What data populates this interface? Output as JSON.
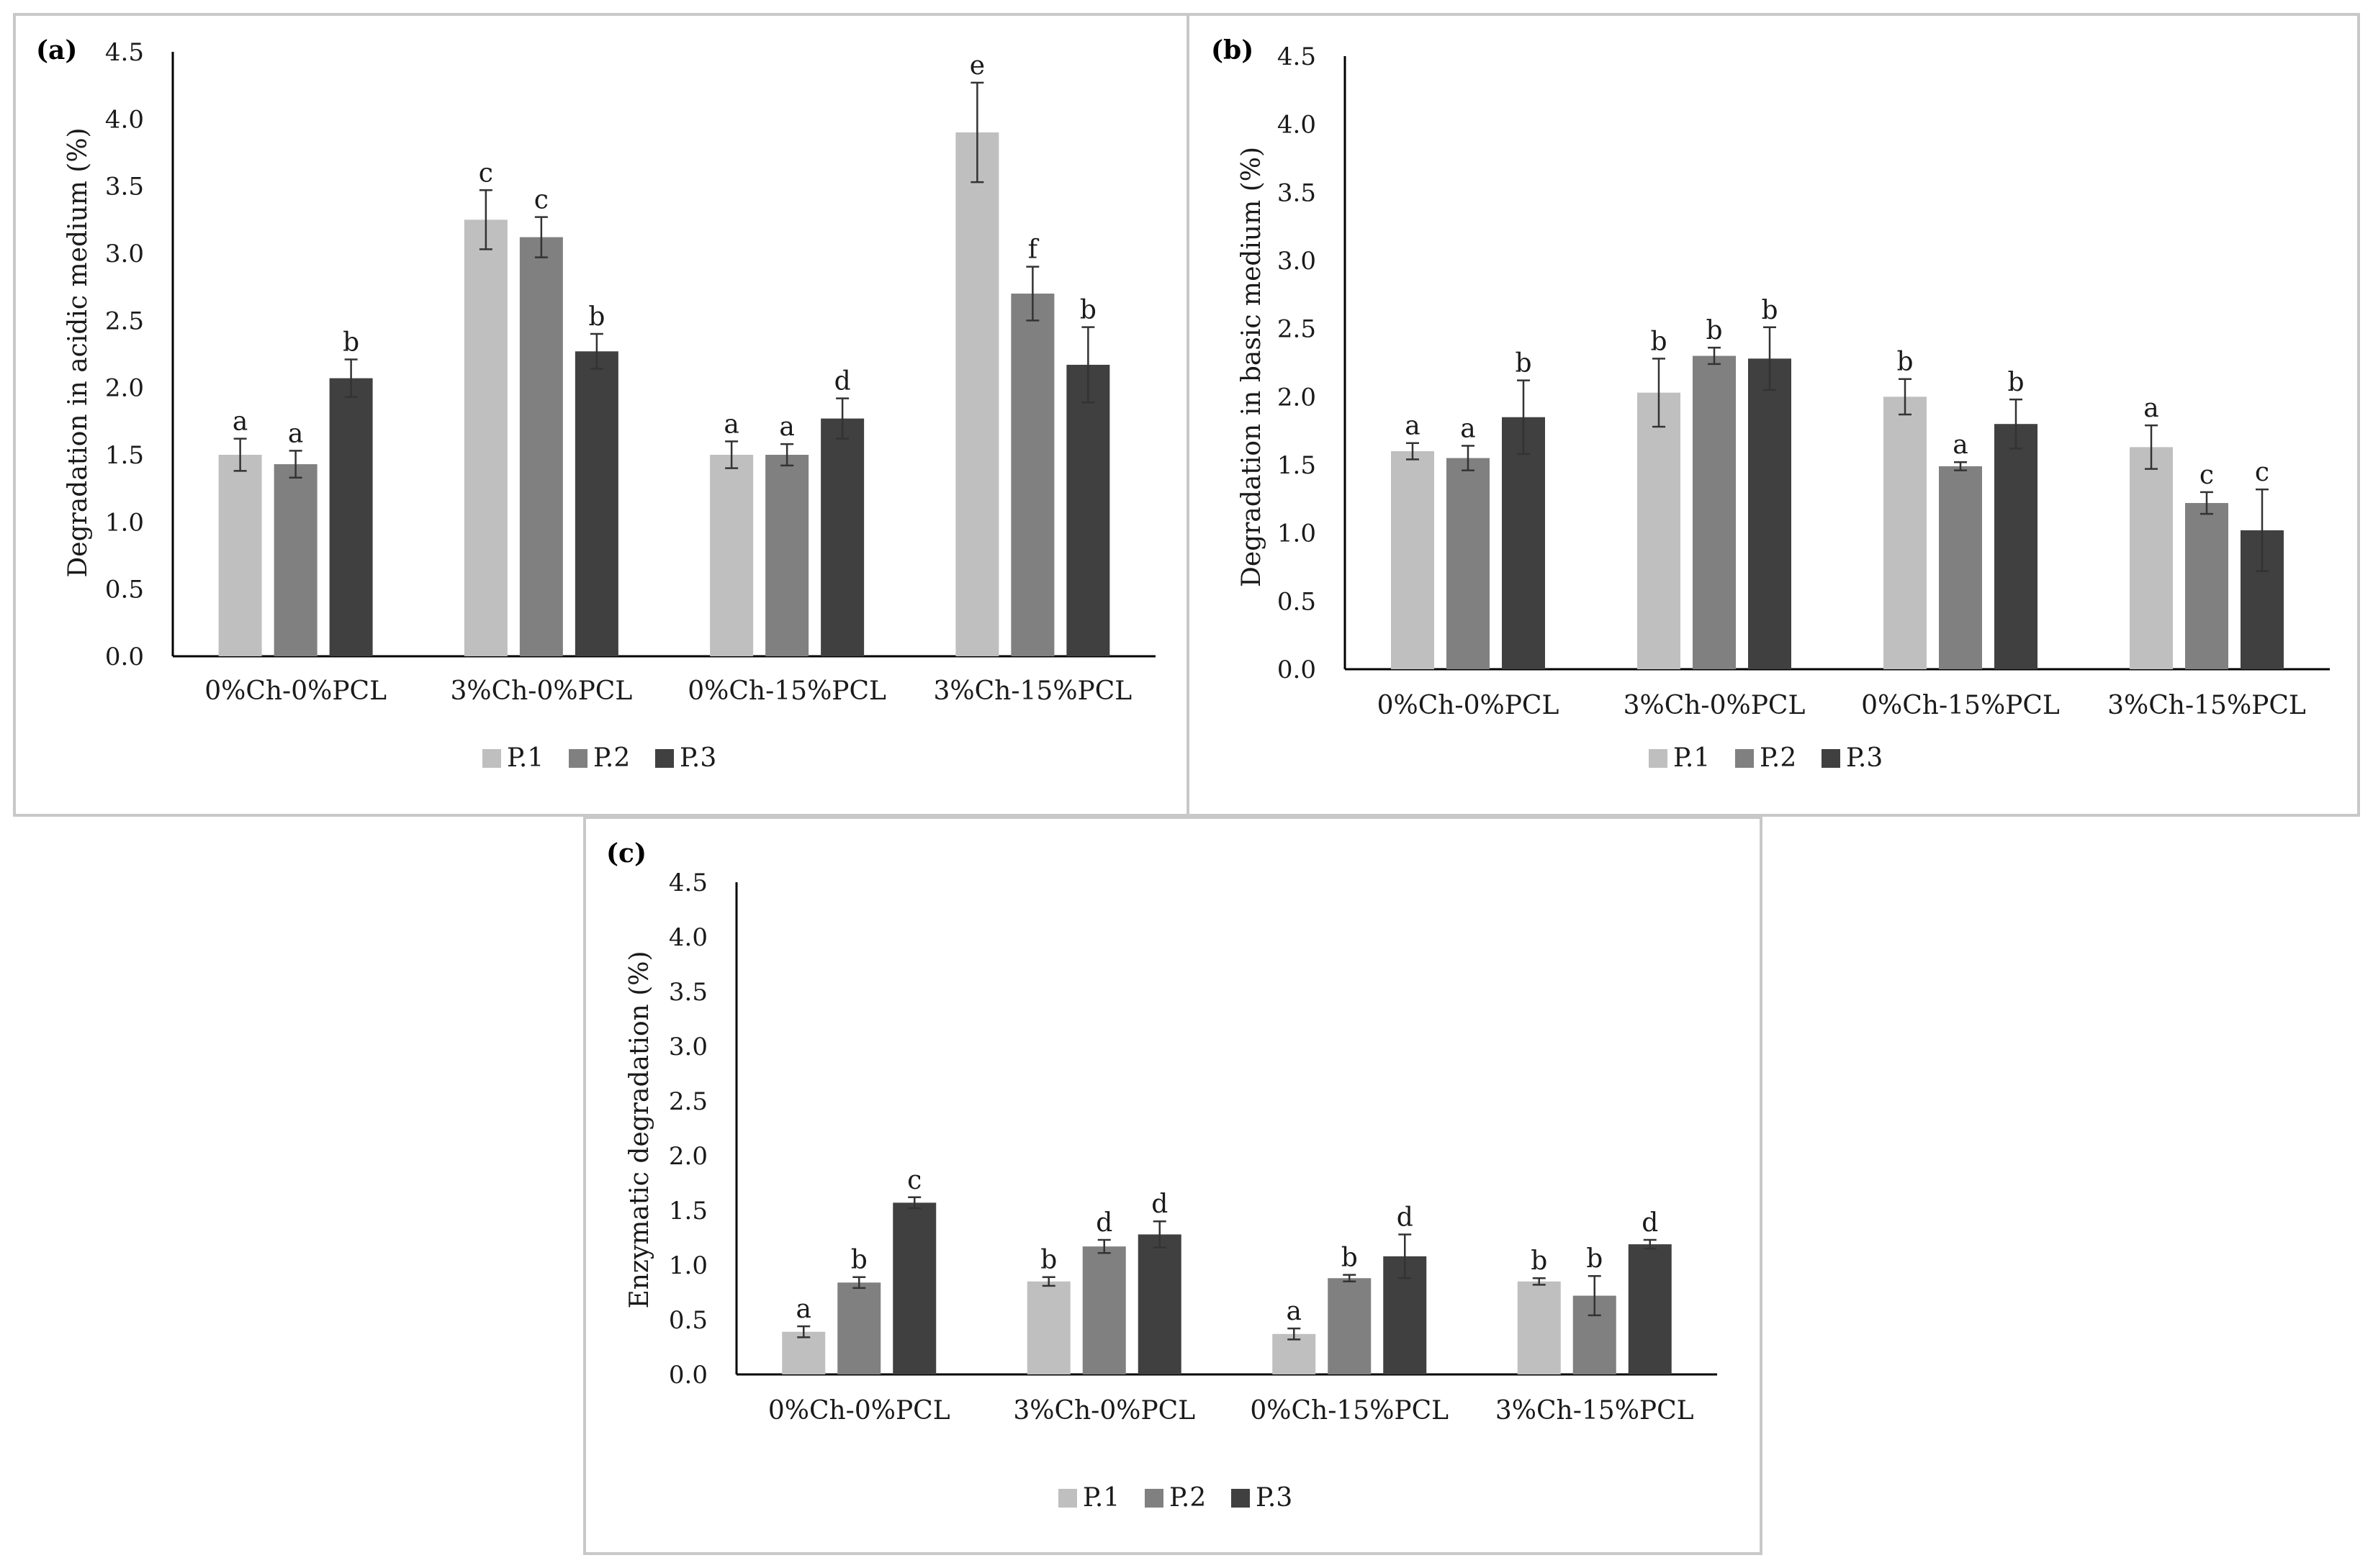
{
  "colors": {
    "P.1": "#bfbfbf",
    "P.2": "#808080",
    "P.3": "#404040"
  },
  "legend": [
    "P.1",
    "P.2",
    "P.3"
  ],
  "chart_data": [
    {
      "panel": "(a)",
      "type": "bar",
      "title": "",
      "xlabel": "",
      "ylabel": "Degradation in acidic medium (%)",
      "ylim": [
        0,
        4.5
      ],
      "yticks": [
        "0.0",
        "0.5",
        "1.0",
        "1.5",
        "2.0",
        "2.5",
        "3.0",
        "3.5",
        "4.0",
        "4.5"
      ],
      "categories": [
        "0%Ch-0%PCL",
        "3%Ch-0%PCL",
        "0%Ch-15%PCL",
        "3%Ch-15%PCL"
      ],
      "series": [
        {
          "name": "P.1",
          "values": [
            1.5,
            3.25,
            1.5,
            3.9
          ],
          "errors": [
            0.12,
            0.22,
            0.1,
            0.37
          ],
          "letters": [
            "a",
            "c",
            "a",
            "e"
          ]
        },
        {
          "name": "P.2",
          "values": [
            1.43,
            3.12,
            1.5,
            2.7
          ],
          "errors": [
            0.1,
            0.15,
            0.08,
            0.2
          ],
          "letters": [
            "a",
            "c",
            "a",
            "f"
          ]
        },
        {
          "name": "P.3",
          "values": [
            2.07,
            2.27,
            1.77,
            2.17
          ],
          "errors": [
            0.14,
            0.13,
            0.15,
            0.28
          ],
          "letters": [
            "b",
            "b",
            "d",
            "b"
          ]
        }
      ]
    },
    {
      "panel": "(b)",
      "type": "bar",
      "title": "",
      "xlabel": "",
      "ylabel": "Degradation in basic medium (%)",
      "ylim": [
        0,
        4.5
      ],
      "yticks": [
        "0.0",
        "0.5",
        "1.0",
        "1.5",
        "2.0",
        "2.5",
        "3.0",
        "3.5",
        "4.0",
        "4.5"
      ],
      "categories": [
        "0%Ch-0%PCL",
        "3%Ch-0%PCL",
        "0%Ch-15%PCL",
        "3%Ch-15%PCL"
      ],
      "series": [
        {
          "name": "P.1",
          "values": [
            1.6,
            2.03,
            2.0,
            1.63
          ],
          "errors": [
            0.06,
            0.25,
            0.13,
            0.16
          ],
          "letters": [
            "a",
            "b",
            "b",
            "a"
          ]
        },
        {
          "name": "P.2",
          "values": [
            1.55,
            2.3,
            1.49,
            1.22
          ],
          "errors": [
            0.09,
            0.06,
            0.03,
            0.08
          ],
          "letters": [
            "a",
            "b",
            "a",
            "c"
          ]
        },
        {
          "name": "P.3",
          "values": [
            1.85,
            2.28,
            1.8,
            1.02
          ],
          "errors": [
            0.27,
            0.23,
            0.18,
            0.3
          ],
          "letters": [
            "b",
            "b",
            "b",
            "c"
          ]
        }
      ]
    },
    {
      "panel": "(c)",
      "type": "bar",
      "title": "",
      "xlabel": "",
      "ylabel": "Enzymatic degradation (%)",
      "ylim": [
        0,
        4.5
      ],
      "yticks": [
        "0.0",
        "0.5",
        "1.0",
        "1.5",
        "2.0",
        "2.5",
        "3.0",
        "3.5",
        "4.0",
        "4.5"
      ],
      "categories": [
        "0%Ch-0%PCL",
        "3%Ch-0%PCL",
        "0%Ch-15%PCL",
        "3%Ch-15%PCL"
      ],
      "series": [
        {
          "name": "P.1",
          "values": [
            0.39,
            0.85,
            0.37,
            0.85
          ],
          "errors": [
            0.05,
            0.04,
            0.05,
            0.03
          ],
          "letters": [
            "a",
            "b",
            "a",
            "b"
          ]
        },
        {
          "name": "P.2",
          "values": [
            0.84,
            1.17,
            0.88,
            0.72
          ],
          "errors": [
            0.05,
            0.06,
            0.03,
            0.18
          ],
          "letters": [
            "b",
            "d",
            "b",
            "b"
          ]
        },
        {
          "name": "P.3",
          "values": [
            1.57,
            1.28,
            1.08,
            1.19
          ],
          "errors": [
            0.05,
            0.12,
            0.2,
            0.04
          ],
          "letters": [
            "c",
            "d",
            "d",
            "d"
          ]
        }
      ]
    }
  ]
}
